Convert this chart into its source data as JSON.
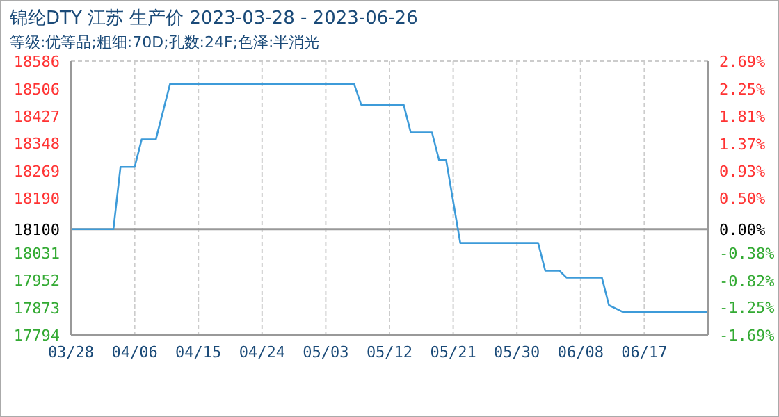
{
  "chart_data": {
    "type": "line",
    "title": "锦纶DTY 江苏 生产价 2023-03-28 - 2023-06-26",
    "subtitle": "等级:优等品;粗细:70D;孔数:24F;色泽:半消光",
    "x": [
      "2023-03-28",
      "2023-04-03",
      "2023-04-04",
      "2023-04-06",
      "2023-04-07",
      "2023-04-09",
      "2023-04-11",
      "2023-05-07",
      "2023-05-08",
      "2023-05-14",
      "2023-05-15",
      "2023-05-18",
      "2023-05-19",
      "2023-05-20",
      "2023-05-21",
      "2023-05-22",
      "2023-06-02",
      "2023-06-03",
      "2023-06-05",
      "2023-06-06",
      "2023-06-11",
      "2023-06-12",
      "2023-06-13",
      "2023-06-14",
      "2023-06-26"
    ],
    "series": [
      {
        "color": "#3d9bd9",
        "values": [
          18100,
          18100,
          18280,
          18280,
          18360,
          18360,
          18520,
          18520,
          18460,
          18460,
          18380,
          18380,
          18300,
          18300,
          18180,
          18060,
          18060,
          17980,
          17980,
          17960,
          17960,
          17880,
          17870,
          17860,
          17860
        ]
      }
    ],
    "xlim": [
      "2023-03-28",
      "2023-06-26"
    ],
    "xticks": [
      {
        "value": "2023-03-28",
        "label": "03/28"
      },
      {
        "value": "2023-04-06",
        "label": "04/06"
      },
      {
        "value": "2023-04-15",
        "label": "04/15"
      },
      {
        "value": "2023-04-24",
        "label": "04/24"
      },
      {
        "value": "2023-05-03",
        "label": "05/03"
      },
      {
        "value": "2023-05-12",
        "label": "05/12"
      },
      {
        "value": "2023-05-21",
        "label": "05/21"
      },
      {
        "value": "2023-05-30",
        "label": "05/30"
      },
      {
        "value": "2023-06-08",
        "label": "06/08"
      },
      {
        "value": "2023-06-17",
        "label": "06/17"
      }
    ],
    "ylim": [
      17794,
      18586
    ],
    "yticks": [
      17794,
      17873,
      17952,
      18031,
      18100,
      18190,
      18269,
      18348,
      18427,
      18506,
      18586
    ],
    "y2lim": [
      -1.69,
      2.69
    ],
    "y2ticks": [
      {
        "value": -1.69,
        "label": "-1.69%"
      },
      {
        "value": -1.25,
        "label": "-1.25%"
      },
      {
        "value": -0.82,
        "label": "-0.82%"
      },
      {
        "value": -0.38,
        "label": "-0.38%"
      },
      {
        "value": 0,
        "label": "0.00%"
      },
      {
        "value": 0.5,
        "label": "0.50%"
      },
      {
        "value": 0.93,
        "label": "0.93%"
      },
      {
        "value": 1.37,
        "label": "1.37%"
      },
      {
        "value": 1.81,
        "label": "1.81%"
      },
      {
        "value": 2.25,
        "label": "2.25%"
      },
      {
        "value": 2.69,
        "label": "2.69%"
      }
    ],
    "ref_lines": [
      {
        "axis": "y",
        "value": 18100,
        "color": "#999999"
      }
    ],
    "grid": true,
    "legend": false,
    "marker": "none",
    "line_style": "solid"
  }
}
